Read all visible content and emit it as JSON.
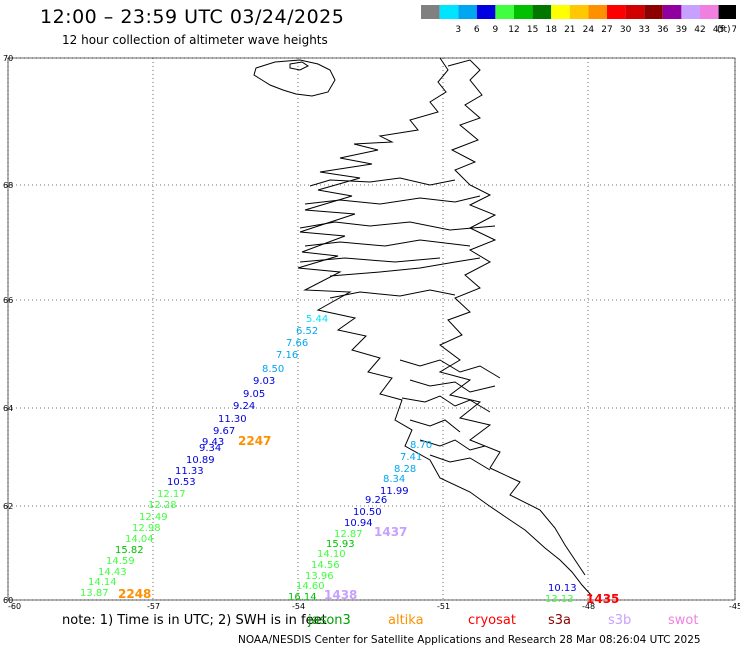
{
  "header": {
    "title": "12:00 – 23:59 UTC 03/24/2025",
    "subtitle": "12 hour collection of altimeter wave heights"
  },
  "legend": {
    "unit": "(ft)",
    "bins": [
      {
        "label": "",
        "color": "#808080"
      },
      {
        "label": "3",
        "color": "#00e5ff"
      },
      {
        "label": "6",
        "color": "#00a6f0"
      },
      {
        "label": "9",
        "color": "#0000e0"
      },
      {
        "label": "12",
        "color": "#40ff40"
      },
      {
        "label": "15",
        "color": "#00c000"
      },
      {
        "label": "18",
        "color": "#007800"
      },
      {
        "label": "21",
        "color": "#ffff00"
      },
      {
        "label": "24",
        "color": "#ffc800"
      },
      {
        "label": "27",
        "color": "#ff9000"
      },
      {
        "label": "30",
        "color": "#ff0000"
      },
      {
        "label": "33",
        "color": "#d00000"
      },
      {
        "label": "36",
        "color": "#8c0000"
      },
      {
        "label": "39",
        "color": "#9000a0"
      },
      {
        "label": "42",
        "color": "#c8a0ff"
      },
      {
        "label": "45",
        "color": "#f080e0"
      },
      {
        "label": "70",
        "color": "#000000"
      }
    ]
  },
  "axes": {
    "lat_labels": [
      "70",
      "68",
      "66",
      "64",
      "62",
      "60"
    ],
    "lon_labels": [
      "-60",
      "-57",
      "-54",
      "-51",
      "-48",
      "-45"
    ]
  },
  "tracks": [
    {
      "name": "track-west",
      "points": [
        {
          "value": "5.44",
          "color": "#00e5ff"
        },
        {
          "value": "6.52",
          "color": "#00a6f0"
        },
        {
          "value": "7.66",
          "color": "#00a6f0"
        },
        {
          "value": "7.16",
          "color": "#00a6f0"
        },
        {
          "value": "8.50",
          "color": "#00a6f0"
        },
        {
          "value": "9.03",
          "color": "#0000e0"
        },
        {
          "value": "9.05",
          "color": "#0000e0"
        },
        {
          "value": "9.24",
          "color": "#0000e0"
        },
        {
          "value": "11.30",
          "color": "#0000e0"
        },
        {
          "value": "9.67",
          "color": "#0000e0"
        },
        {
          "value": "9.43",
          "color": "#0000e0"
        },
        {
          "value": "9.34",
          "color": "#0000e0"
        },
        {
          "value": "10.89",
          "color": "#0000e0"
        },
        {
          "value": "11.33",
          "color": "#0000e0"
        },
        {
          "value": "10.53",
          "color": "#0000e0"
        },
        {
          "value": "12.17",
          "color": "#40ff40"
        },
        {
          "value": "12.28",
          "color": "#40ff40"
        },
        {
          "value": "12.49",
          "color": "#40ff40"
        },
        {
          "value": "12.98",
          "color": "#40ff40"
        },
        {
          "value": "14.04",
          "color": "#40ff40"
        },
        {
          "value": "15.82",
          "color": "#00c000"
        },
        {
          "value": "14.59",
          "color": "#40ff40"
        },
        {
          "value": "14.43",
          "color": "#40ff40"
        },
        {
          "value": "14.14",
          "color": "#40ff40"
        },
        {
          "value": "13.87",
          "color": "#40ff40"
        }
      ]
    },
    {
      "name": "track-east",
      "points": [
        {
          "value": "8.70",
          "color": "#00a6f0"
        },
        {
          "value": "7.41",
          "color": "#00a6f0"
        },
        {
          "value": "8.28",
          "color": "#00a6f0"
        },
        {
          "value": "8.34",
          "color": "#00a6f0"
        },
        {
          "value": "11.99",
          "color": "#0000e0"
        },
        {
          "value": "9.26",
          "color": "#0000e0"
        },
        {
          "value": "10.50",
          "color": "#0000e0"
        },
        {
          "value": "10.94",
          "color": "#0000e0"
        },
        {
          "value": "12.87",
          "color": "#40ff40"
        },
        {
          "value": "15.93",
          "color": "#00c000"
        },
        {
          "value": "14.10",
          "color": "#40ff40"
        },
        {
          "value": "14.56",
          "color": "#40ff40"
        },
        {
          "value": "13.96",
          "color": "#40ff40"
        },
        {
          "value": "14.60",
          "color": "#40ff40"
        },
        {
          "value": "16.14",
          "color": "#00c000"
        }
      ]
    },
    {
      "name": "track-south-east",
      "points": [
        {
          "value": "10.13",
          "color": "#0000e0"
        },
        {
          "value": "13.13",
          "color": "#40ff40"
        }
      ]
    }
  ],
  "pass_times": [
    {
      "value": "2247",
      "color": "#ff9000"
    },
    {
      "value": "2248",
      "color": "#ff9000"
    },
    {
      "value": "1437",
      "color": "#c8a0ff"
    },
    {
      "value": "1438",
      "color": "#c8a0ff"
    },
    {
      "value": "1435",
      "color": "#ff0000"
    }
  ],
  "footer": {
    "note": "note:  1) Time is in UTC;  2) SWH is in feet",
    "satellites": [
      {
        "label": "jason3",
        "color": "#00a000"
      },
      {
        "label": "altika",
        "color": "#ff9000"
      },
      {
        "label": "cryosat",
        "color": "#ff0000"
      },
      {
        "label": "s3a",
        "color": "#8c0000"
      },
      {
        "label": "s3b",
        "color": "#c8a0ff"
      },
      {
        "label": "swot",
        "color": "#f080e0"
      }
    ],
    "credit": "NOAA/NESDIS Center for Satellite Applications and Research    28 Mar 08:26:04 UTC 2025"
  }
}
